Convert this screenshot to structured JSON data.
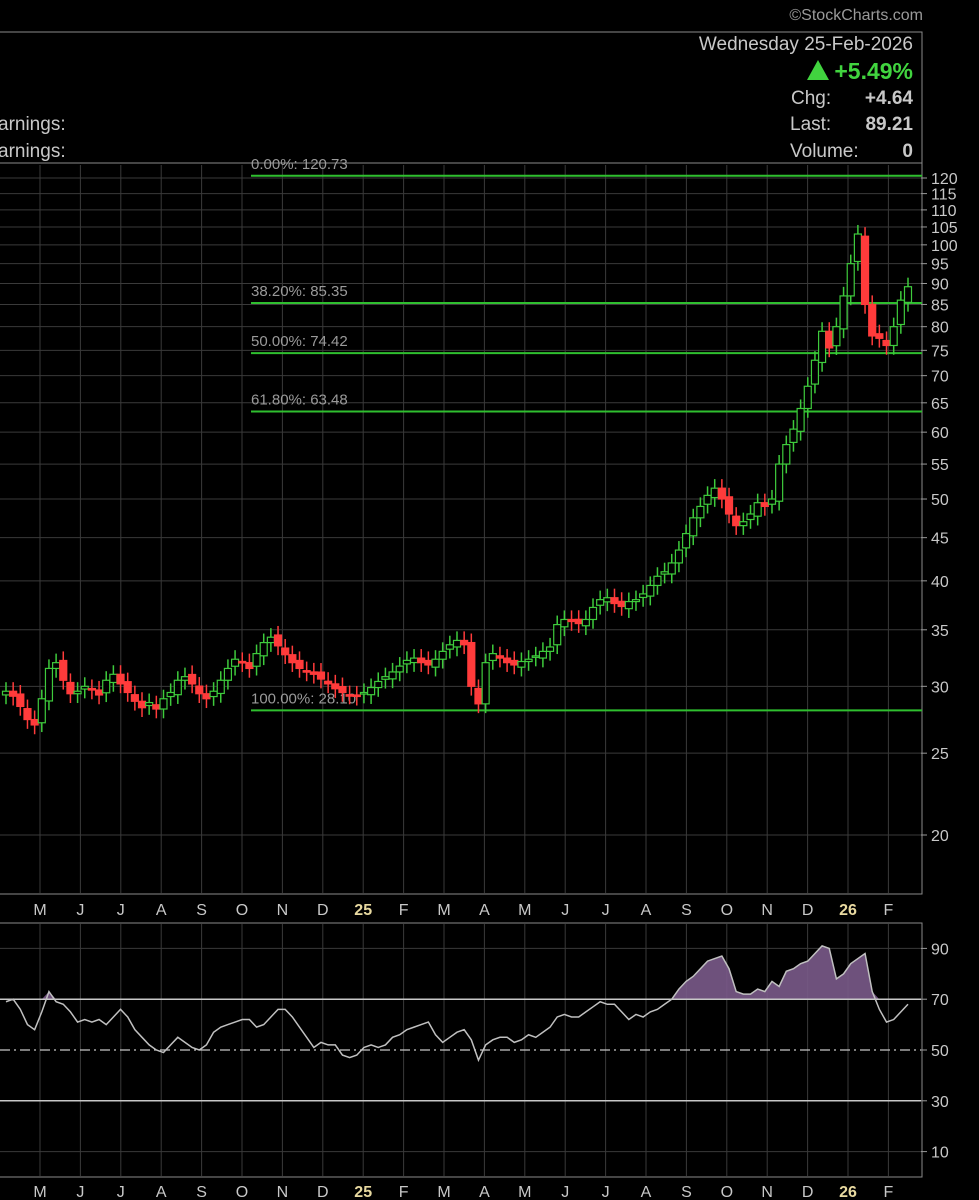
{
  "watermark": "©StockCharts.com",
  "header": {
    "date": "Wednesday  25-Feb-2026",
    "change_pct": "+5.49%",
    "chg_label": "Chg:",
    "chg_value": "+4.64",
    "last_label": "Last:",
    "last_value": "89.21",
    "volume_label": "Volume:",
    "volume_value": "0",
    "earnings_1": "arnings:",
    "earnings_2": "arnings:"
  },
  "colors": {
    "up": "#3ecb3c",
    "down": "#ff3b3b",
    "fib_line": "#2fbf2f",
    "grid": "#3a3a3a",
    "rsi_line": "#c0c0c0",
    "rsi_fill": "#7a5a8a"
  },
  "chart_data": [
    {
      "type": "candlestick",
      "scale": "log",
      "ylim": [
        17,
        123
      ],
      "yticks": [
        20,
        25,
        30,
        35,
        40,
        45,
        50,
        55,
        60,
        65,
        70,
        75,
        80,
        85,
        90,
        95,
        100,
        105,
        110,
        115,
        120
      ],
      "month_labels": [
        "M",
        "J",
        "J",
        "A",
        "S",
        "O",
        "N",
        "D",
        "25",
        "F",
        "M",
        "A",
        "M",
        "J",
        "J",
        "A",
        "S",
        "O",
        "N",
        "D",
        "26",
        "F"
      ],
      "fib_levels": [
        {
          "label": "0.00%: 120.73",
          "value": 120.73
        },
        {
          "label": "38.20%: 85.35",
          "value": 85.35
        },
        {
          "label": "50.00%: 74.42",
          "value": 74.42
        },
        {
          "label": "61.80%: 63.48",
          "value": 63.48
        },
        {
          "label": "100.00%: 28.10",
          "value": 28.1
        }
      ],
      "close": [
        29.6,
        29.2,
        28.4,
        27.4,
        27.0,
        29.0,
        31.5,
        32.0,
        30.5,
        29.4,
        29.6,
        30.0,
        29.7,
        29.3,
        30.5,
        31.0,
        30.2,
        29.5,
        28.8,
        28.3,
        28.7,
        28.2,
        29.0,
        29.5,
        30.5,
        30.8,
        30.2,
        29.4,
        29.0,
        29.6,
        30.5,
        31.5,
        32.3,
        32.0,
        31.5,
        32.8,
        33.8,
        34.3,
        33.5,
        32.7,
        32.0,
        31.5,
        31.2,
        31.0,
        30.6,
        30.2,
        29.8,
        29.5,
        29.3,
        29.2,
        29.5,
        29.9,
        30.4,
        30.8,
        31.2,
        31.7,
        32.2,
        32.4,
        32.0,
        31.8,
        32.3,
        33.0,
        33.6,
        34.0,
        33.6,
        30.0,
        28.6,
        32.0,
        32.8,
        32.4,
        32.0,
        31.8,
        32.1,
        32.3,
        32.6,
        33.0,
        33.4,
        35.5,
        36.0,
        35.8,
        35.6,
        36.0,
        37.2,
        38.0,
        38.2,
        37.6,
        37.3,
        37.8,
        38.0,
        38.6,
        39.5,
        40.5,
        41.0,
        42.0,
        43.5,
        45.5,
        47.5,
        49.0,
        50.5,
        51.5,
        50.0,
        48.0,
        46.5,
        47.0,
        48.0,
        49.5,
        49.0,
        50.0,
        55.0,
        58.0,
        60.5,
        64.0,
        68.0,
        73.0,
        79.0,
        75.5,
        80.0,
        87.0,
        95.0,
        103.0,
        85.0,
        78.0,
        77.5,
        76.0,
        80.0,
        86.0,
        89.21
      ],
      "rsi": {
        "yticks": [
          10,
          30,
          50,
          70,
          90
        ],
        "reference_lines": [
          70,
          50,
          30
        ],
        "values": [
          69,
          70,
          66,
          60,
          58,
          65,
          73,
          69,
          68,
          65,
          61,
          62,
          61,
          62,
          60,
          63,
          66,
          63,
          58,
          55,
          52,
          50,
          49,
          52,
          55,
          53,
          51,
          50,
          52,
          57,
          59,
          60,
          61,
          62,
          62,
          59,
          60,
          63,
          66,
          66,
          63,
          59,
          55,
          51,
          53,
          52,
          52,
          48,
          47,
          48,
          51,
          52,
          51,
          52,
          55,
          56,
          58,
          59,
          60,
          61,
          56,
          53,
          55,
          57,
          58,
          54,
          46,
          52,
          54,
          55,
          55,
          53,
          54,
          56,
          55,
          57,
          59,
          63,
          64,
          63,
          63,
          65,
          67,
          69,
          68,
          68,
          65,
          62,
          64,
          63,
          65,
          66,
          68,
          70,
          74,
          77,
          79,
          82,
          85,
          86,
          87,
          82,
          73,
          72,
          72,
          74,
          73,
          77,
          75,
          81,
          82,
          84,
          85,
          88,
          91,
          90,
          78,
          80,
          84,
          86,
          88,
          73,
          66,
          61,
          62,
          65,
          68
        ]
      },
      "rsi_ylim": [
        0,
        100
      ]
    }
  ]
}
